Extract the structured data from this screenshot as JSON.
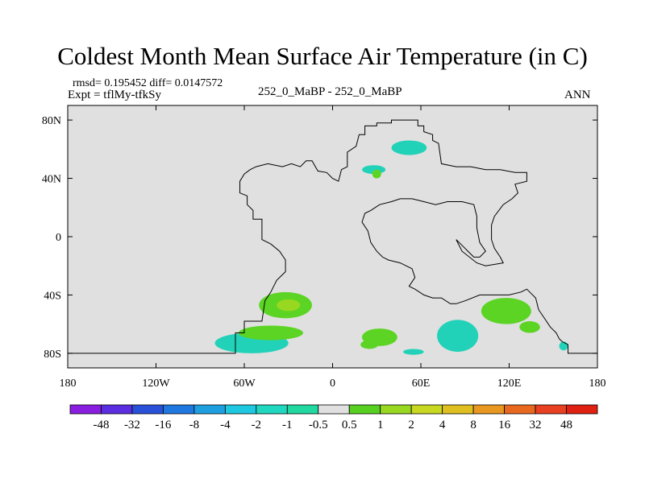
{
  "chart_data": {
    "type": "heatmap",
    "title": "Coldest Month Mean Surface Air Temperature (in C)",
    "stats_line": "rmsd= 0.195452 diff= 0.0147572",
    "experiment_label": "Expt = tflMy-tfkSy",
    "comparison_label": "252_0_MaBP - 252_0_MaBP",
    "period_label": "ANN",
    "x_ticks": [
      "180",
      "120W",
      "60W",
      "0",
      "60E",
      "120E",
      "180"
    ],
    "x_values": [
      -180,
      -120,
      -60,
      0,
      60,
      120,
      180
    ],
    "y_ticks": [
      "80N",
      "40N",
      "0",
      "40S",
      "80S"
    ],
    "y_values": [
      80,
      40,
      0,
      -40,
      -80
    ],
    "xlim": [
      -180,
      180
    ],
    "ylim": [
      -90,
      90
    ],
    "legend": {
      "labels": [
        "-48",
        "-32",
        "-16",
        "-8",
        "-4",
        "-2",
        "-1",
        "-0.5",
        "0.5",
        "1",
        "2",
        "4",
        "8",
        "16",
        "32",
        "48"
      ],
      "colors": [
        "#8a1ee0",
        "#5a2ee0",
        "#2850d8",
        "#1e78e0",
        "#1ea0e0",
        "#1ec8e0",
        "#20d8c0",
        "#20d8a0",
        "#e0e0e0",
        "#58d020",
        "#98d820",
        "#c8d820",
        "#e0c020",
        "#e89820",
        "#e86820",
        "#e84020",
        "#e02010"
      ]
    },
    "regions": [
      {
        "name": "south-america-anomaly-light",
        "value_bin": "0.5 to 1",
        "lon": -32,
        "lat": -47,
        "rlon": 18,
        "rlat": 9
      },
      {
        "name": "south-america-anomaly-core",
        "value_bin": "1 to 2",
        "lon": -30,
        "lat": -47,
        "rlon": 8,
        "rlat": 4
      },
      {
        "name": "southern-ocean-cyan-west",
        "value_bin": "-1 to -0.5",
        "lon": -55,
        "lat": -73,
        "rlon": 25,
        "rlat": 7
      },
      {
        "name": "southern-ocean-green-west",
        "value_bin": "0.5 to 1",
        "lon": -42,
        "lat": -66,
        "rlon": 22,
        "rlat": 5
      },
      {
        "name": "southern-ocean-green-small",
        "value_bin": "0.5 to 1",
        "lon": 32,
        "lat": -69,
        "rlon": 12,
        "rlat": 6
      },
      {
        "name": "southern-ocean-green-tiny",
        "value_bin": "0.5 to 1",
        "lon": 25,
        "lat": -74,
        "rlon": 6,
        "rlat": 3
      },
      {
        "name": "southern-ocean-cyan-mid",
        "value_bin": "-1 to -0.5",
        "lon": 55,
        "lat": -79,
        "rlon": 7,
        "rlat": 2
      },
      {
        "name": "southern-ocean-cyan-central",
        "value_bin": "-1 to -0.5",
        "lon": 85,
        "lat": -68,
        "rlon": 14,
        "rlat": 11
      },
      {
        "name": "southern-ocean-green-east",
        "value_bin": "0.5 to 1",
        "lon": 118,
        "lat": -51,
        "rlon": 17,
        "rlat": 9
      },
      {
        "name": "southern-ocean-green-east-tail",
        "value_bin": "0.5 to 1",
        "lon": 134,
        "lat": -62,
        "rlon": 7,
        "rlat": 4
      },
      {
        "name": "southern-ocean-cyan-far-east",
        "value_bin": "-1 to -0.5",
        "lon": 157,
        "lat": -75,
        "rlon": 3,
        "rlat": 3
      },
      {
        "name": "arctic-cyan-anomaly",
        "value_bin": "-1 to -0.5",
        "lon": 52,
        "lat": 61,
        "rlon": 12,
        "rlat": 5
      },
      {
        "name": "north-cyan-small",
        "value_bin": "-1 to -0.5",
        "lon": 28,
        "lat": 46,
        "rlon": 8,
        "rlat": 3
      },
      {
        "name": "north-green-small",
        "value_bin": "0.5 to 1",
        "lon": 30,
        "lat": 43,
        "rlon": 3,
        "rlat": 3
      }
    ],
    "coastline": [
      [
        -180,
        -80
      ],
      [
        -66,
        -80
      ],
      [
        -66,
        -66
      ],
      [
        -60,
        -66
      ],
      [
        -60,
        -58
      ],
      [
        -48,
        -58
      ],
      [
        -46,
        -44
      ],
      [
        -42,
        -38
      ],
      [
        -38,
        -30
      ],
      [
        -32,
        -24
      ],
      [
        -32,
        -16
      ],
      [
        -36,
        -10
      ],
      [
        -42,
        -5
      ],
      [
        -48,
        -2
      ],
      [
        -48,
        6
      ],
      [
        -48,
        12
      ],
      [
        -54,
        12
      ],
      [
        -54,
        18
      ],
      [
        -58,
        22
      ],
      [
        -58,
        28
      ],
      [
        -63,
        30
      ],
      [
        -63,
        38
      ],
      [
        -60,
        43
      ],
      [
        -56,
        46
      ],
      [
        -52,
        48
      ],
      [
        -44,
        50
      ],
      [
        -34,
        48
      ],
      [
        -28,
        50
      ],
      [
        -22,
        48
      ],
      [
        -18,
        52
      ],
      [
        -14,
        52
      ],
      [
        -10,
        45
      ],
      [
        -4,
        44
      ],
      [
        0,
        40
      ],
      [
        4,
        38
      ],
      [
        6,
        46
      ],
      [
        10,
        48
      ],
      [
        10,
        58
      ],
      [
        16,
        62
      ],
      [
        18,
        70
      ],
      [
        22,
        70
      ],
      [
        22,
        76
      ],
      [
        30,
        76
      ],
      [
        30,
        78
      ],
      [
        40,
        78
      ],
      [
        40,
        80
      ],
      [
        58,
        80
      ],
      [
        58,
        76
      ],
      [
        62,
        76
      ],
      [
        62,
        72
      ],
      [
        68,
        70
      ],
      [
        68,
        66
      ],
      [
        72,
        64
      ],
      [
        74,
        50
      ],
      [
        84,
        48
      ],
      [
        94,
        48
      ],
      [
        104,
        46
      ],
      [
        114,
        46
      ],
      [
        124,
        44
      ],
      [
        132,
        44
      ],
      [
        132,
        38
      ],
      [
        124,
        36
      ],
      [
        126,
        30
      ],
      [
        122,
        26
      ],
      [
        116,
        22
      ],
      [
        110,
        14
      ],
      [
        108,
        8
      ],
      [
        108,
        -2
      ],
      [
        110,
        -8
      ],
      [
        114,
        -14
      ],
      [
        116,
        -18
      ],
      [
        104,
        -20
      ],
      [
        98,
        -18
      ],
      [
        88,
        -10
      ],
      [
        84,
        -2
      ],
      [
        86,
        -4
      ],
      [
        92,
        -10
      ],
      [
        96,
        -14
      ],
      [
        100,
        -14
      ],
      [
        104,
        -10
      ],
      [
        100,
        -4
      ],
      [
        98,
        6
      ],
      [
        98,
        14
      ],
      [
        96,
        22
      ],
      [
        88,
        24
      ],
      [
        78,
        24
      ],
      [
        70,
        22
      ],
      [
        62,
        24
      ],
      [
        54,
        26
      ],
      [
        46,
        26
      ],
      [
        40,
        24
      ],
      [
        32,
        22
      ],
      [
        26,
        18
      ],
      [
        22,
        16
      ],
      [
        20,
        10
      ],
      [
        24,
        4
      ],
      [
        26,
        -4
      ],
      [
        30,
        -10
      ],
      [
        34,
        -14
      ],
      [
        38,
        -16
      ],
      [
        46,
        -18
      ],
      [
        54,
        -22
      ],
      [
        56,
        -28
      ],
      [
        52,
        -34
      ],
      [
        56,
        -36
      ],
      [
        62,
        -40
      ],
      [
        68,
        -42
      ],
      [
        74,
        -42
      ],
      [
        80,
        -46
      ],
      [
        84,
        -46
      ],
      [
        90,
        -44
      ],
      [
        100,
        -40
      ],
      [
        110,
        -40
      ],
      [
        120,
        -40
      ],
      [
        128,
        -38
      ],
      [
        132,
        -36
      ],
      [
        134,
        -38
      ],
      [
        138,
        -42
      ],
      [
        140,
        -50
      ],
      [
        144,
        -56
      ],
      [
        148,
        -62
      ],
      [
        152,
        -66
      ],
      [
        154,
        -70
      ],
      [
        156,
        -72
      ],
      [
        160,
        -74
      ],
      [
        160,
        -80
      ],
      [
        180,
        -80
      ]
    ]
  }
}
